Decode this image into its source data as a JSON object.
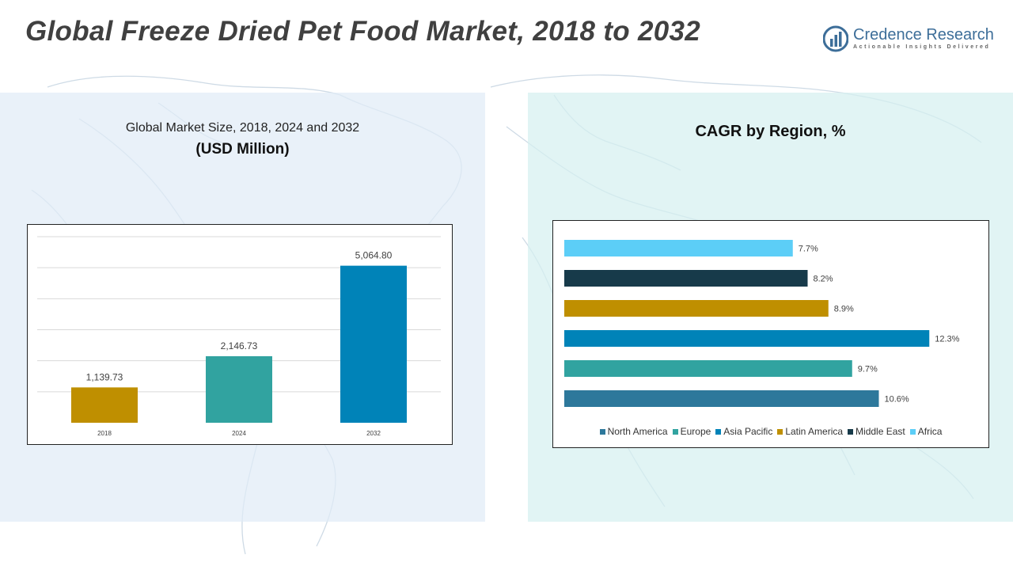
{
  "title": "Global Freeze Dried Pet Food Market, 2018 to 2032",
  "logo": {
    "name": "Credence Research",
    "tagline": "Actionable Insights Delivered",
    "icon": "bar-chart-logo-icon"
  },
  "left_panel": {
    "subtitle": "Global Market Size, 2018, 2024 and 2032",
    "unit": "(USD Million)"
  },
  "right_panel": {
    "title": "CAGR by Region, %"
  },
  "colors": {
    "gold": "#bf8f00",
    "teal": "#31a3a0",
    "blue": "#0083b8",
    "navy": "#173a4a",
    "sky": "#5ccef7",
    "steel": "#2d789b"
  },
  "chart_data": [
    {
      "type": "bar",
      "categories": [
        "2018",
        "2024",
        "2032"
      ],
      "values": [
        1139.73,
        2146.73,
        5064.8
      ],
      "data_labels": [
        "1,139.73",
        "2,146.73",
        "5,064.80"
      ],
      "colors": [
        "#bf8f00",
        "#31a3a0",
        "#0083b8"
      ],
      "title": "Global Market Size, 2018, 2024 and 2032",
      "ylabel": "(USD Million)",
      "ylim": [
        0,
        6000
      ],
      "grid": true,
      "legend": "none"
    },
    {
      "type": "bar",
      "orientation": "horizontal",
      "title": "CAGR by Region, %",
      "categories": [
        "Africa",
        "Middle East",
        "Latin America",
        "Asia Pacific",
        "Europe",
        "North America"
      ],
      "values": [
        7.7,
        8.2,
        8.9,
        12.3,
        9.7,
        10.6
      ],
      "data_labels": [
        "7.7%",
        "8.2%",
        "8.9%",
        "12.3%",
        "9.7%",
        "10.6%"
      ],
      "colors": [
        "#5ccef7",
        "#173a4a",
        "#bf8f00",
        "#0083b8",
        "#31a3a0",
        "#2d789b"
      ],
      "xlim": [
        0,
        12.8
      ],
      "grid": false,
      "legend": "bottom",
      "legend_entries": [
        {
          "label": "North America",
          "color": "#2d789b"
        },
        {
          "label": "Europe",
          "color": "#31a3a0"
        },
        {
          "label": "Asia Pacific",
          "color": "#0083b8"
        },
        {
          "label": "Latin America",
          "color": "#bf8f00"
        },
        {
          "label": "Middle East",
          "color": "#173a4a"
        },
        {
          "label": "Africa",
          "color": "#5ccef7"
        }
      ]
    }
  ]
}
